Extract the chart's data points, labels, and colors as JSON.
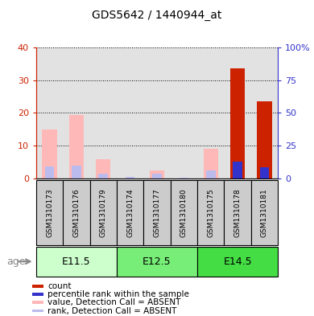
{
  "title": "GDS5642 / 1440944_at",
  "samples": [
    "GSM1310173",
    "GSM1310176",
    "GSM1310179",
    "GSM1310174",
    "GSM1310177",
    "GSM1310180",
    "GSM1310175",
    "GSM1310178",
    "GSM1310181"
  ],
  "age_groups": [
    {
      "label": "E11.5",
      "start": 0,
      "end": 3,
      "color": "#CCFFCC"
    },
    {
      "label": "E12.5",
      "start": 3,
      "end": 6,
      "color": "#77EE77"
    },
    {
      "label": "E14.5",
      "start": 6,
      "end": 9,
      "color": "#44DD44"
    }
  ],
  "value_absent": [
    15.0,
    19.5,
    6.0,
    0.0,
    2.5,
    0.0,
    9.0,
    0.0,
    0.0
  ],
  "rank_absent": [
    9.5,
    10.0,
    3.5,
    1.2,
    3.5,
    0.5,
    6.0,
    0.0,
    0.0
  ],
  "count_red": [
    0.0,
    0.0,
    0.0,
    0.0,
    0.0,
    0.0,
    0.0,
    33.5,
    23.5
  ],
  "percentile_blue": [
    0.0,
    0.0,
    0.0,
    0.0,
    0.0,
    0.0,
    0.0,
    13.0,
    8.5
  ],
  "left_ylim": [
    0,
    40
  ],
  "right_ylim": [
    0,
    100
  ],
  "left_yticks": [
    0,
    10,
    20,
    30,
    40
  ],
  "right_yticks": [
    0,
    25,
    50,
    75,
    100
  ],
  "left_yticklabels": [
    "0",
    "10",
    "20",
    "30",
    "40"
  ],
  "right_yticklabels": [
    "0",
    "25",
    "50",
    "75",
    "100%"
  ],
  "color_red": "#CC2200",
  "color_blue": "#3333CC",
  "color_pink": "#FFB8B8",
  "color_lavender": "#BBBBEE",
  "color_gray_bg": "#D0D0D0",
  "age_label": "age",
  "legend_items": [
    {
      "label": "count",
      "color": "#CC2200"
    },
    {
      "label": "percentile rank within the sample",
      "color": "#3333CC"
    },
    {
      "label": "value, Detection Call = ABSENT",
      "color": "#FFB8B8"
    },
    {
      "label": "rank, Detection Call = ABSENT",
      "color": "#BBBBEE"
    }
  ],
  "fig_width": 3.9,
  "fig_height": 3.93,
  "dpi": 100
}
